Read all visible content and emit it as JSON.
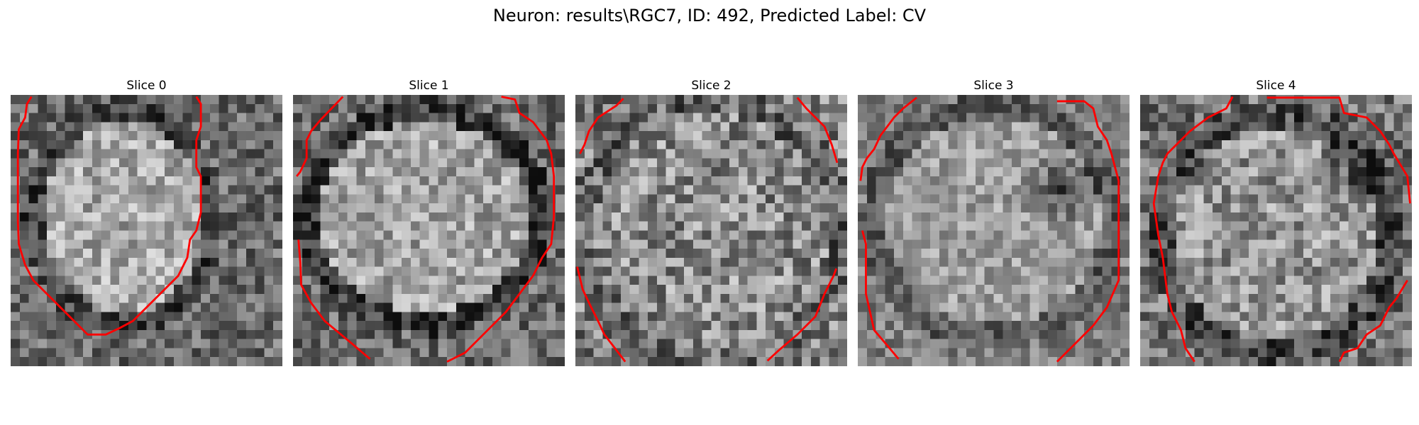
{
  "figure": {
    "title": "Neuron: results\\RGC7, ID: 492, Predicted Label: CV"
  },
  "colors": {
    "contour": "#ff0000",
    "pixel_dark": "#1a1a1a",
    "pixel_light": "#f0f0f0"
  },
  "panels": [
    {
      "title": "Slice 0"
    },
    {
      "title": "Slice 1"
    },
    {
      "title": "Slice 2"
    },
    {
      "title": "Slice 3"
    },
    {
      "title": "Slice 4"
    }
  ]
}
